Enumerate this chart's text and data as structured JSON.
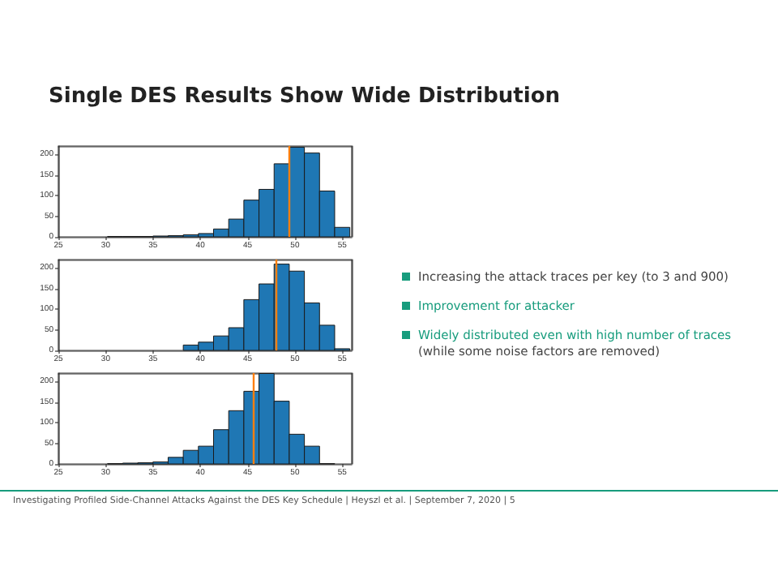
{
  "chart_data": [
    {
      "type": "other",
      "title": "Single DES Results Show Wide Distribution",
      "annotations": [
        "Increasing the attack traces per key (to 3 and 900)",
        "Improvement for attacker",
        "Widely distributed even with high number of traces",
        "(while some noise factors are removed)",
        "Investigating Profiled Side-Channel Attacks Against the DES Key Schedule | Heyszl et al. | September 7, 2020 | 5"
      ]
    },
    {
      "type": "histogram",
      "bins": [
        30.2,
        31.8,
        33.4,
        35.0,
        36.6,
        38.2,
        39.8,
        41.4,
        43.0,
        44.6,
        46.2,
        47.8,
        49.4,
        51.0,
        52.6,
        54.2,
        55.8
      ],
      "values": [
        1,
        1,
        1,
        2,
        3,
        5,
        8,
        19,
        43,
        89,
        115,
        177,
        217,
        203,
        111,
        23
      ],
      "color": "#1f77b4",
      "xlim": [
        25,
        56
      ],
      "xticks": [
        25,
        30,
        35,
        40,
        45,
        50,
        55
      ],
      "ylim": [
        0,
        220
      ],
      "yticks": [
        0,
        50,
        100,
        150,
        200
      ],
      "ref_lines": [
        {
          "axis": "x",
          "value": 49.3,
          "color": "#ff7f0e"
        }
      ]
    },
    {
      "type": "histogram",
      "bins": [
        38.2,
        39.8,
        41.4,
        43.0,
        44.6,
        46.2,
        47.8,
        49.4,
        51.0,
        52.6,
        54.2,
        55.8
      ],
      "values": [
        13,
        20,
        35,
        55,
        123,
        161,
        209,
        192,
        115,
        61,
        4
      ],
      "color": "#1f77b4",
      "xlim": [
        25,
        56
      ],
      "xticks": [
        25,
        30,
        35,
        40,
        45,
        50,
        55
      ],
      "ylim": [
        0,
        220
      ],
      "yticks": [
        0,
        50,
        100,
        150,
        200
      ],
      "ref_lines": [
        {
          "axis": "x",
          "value": 48.0,
          "color": "#ff7f0e"
        }
      ]
    },
    {
      "type": "histogram",
      "bins": [
        30.2,
        31.8,
        33.4,
        35.0,
        36.6,
        38.2,
        39.8,
        41.4,
        43.0,
        44.6,
        46.2,
        47.8,
        49.4,
        51.0,
        52.6,
        54.2
      ],
      "values": [
        1,
        2,
        3,
        5,
        16,
        33,
        43,
        83,
        129,
        176,
        219,
        152,
        72,
        43,
        1
      ],
      "color": "#1f77b4",
      "xlim": [
        25,
        56
      ],
      "xticks": [
        25,
        30,
        35,
        40,
        45,
        50,
        55
      ],
      "ylim": [
        0,
        220
      ],
      "yticks": [
        0,
        50,
        100,
        150,
        200
      ],
      "ref_lines": [
        {
          "axis": "x",
          "value": 45.6,
          "color": "#ff7f0e"
        }
      ]
    }
  ]
}
